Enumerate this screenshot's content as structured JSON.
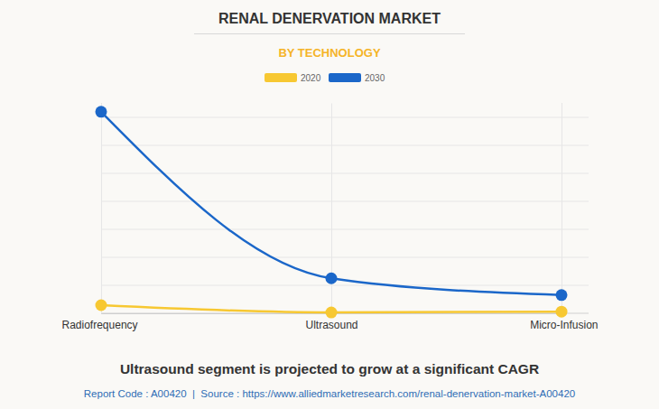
{
  "chart_data": {
    "type": "line",
    "title": "RENAL DENERVATION MARKET",
    "subtitle": "BY TECHNOLOGY",
    "categories": [
      "Radiofrequency",
      "Ultrasound",
      "Micro-Infusion"
    ],
    "series": [
      {
        "name": "2020",
        "color": "#f7c832",
        "marker": "circle",
        "values": [
          0.29,
          0.03,
          0.06
        ]
      },
      {
        "name": "2030",
        "color": "#1b67c9",
        "marker": "circle",
        "values": [
          7.2,
          1.25,
          0.65
        ]
      }
    ],
    "ylim": [
      0,
      7.5
    ],
    "yticks": [
      0,
      1,
      2,
      3,
      4,
      5,
      6,
      7
    ],
    "grid": true,
    "tick_labels": "x",
    "legend": "top",
    "annotations": [
      "Ultrasound segment is projected to grow at a significant CAGR",
      "Report Code : A00420  |  Source : https://www.alliedmarketresearch.com/renal-denervation-market-A00420"
    ]
  }
}
